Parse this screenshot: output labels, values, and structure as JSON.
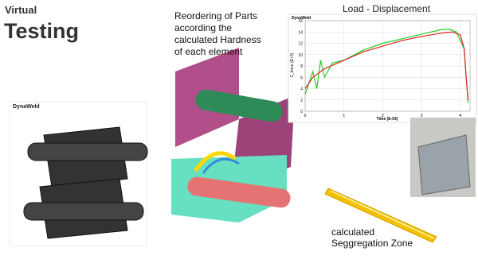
{
  "header": {
    "kicker": "Virtual",
    "title": "Testing"
  },
  "left_model_label": "DynaWeld",
  "reorder_note": [
    "Reordering of Parts",
    "according the",
    "calculated Hardness",
    "of each element"
  ],
  "zone_note": [
    "calculated",
    "Seggregation Zone"
  ],
  "chart_data": {
    "type": "line",
    "title": "Load - Displacement",
    "source": "DynaWeld",
    "x_label": "Time (E-03)",
    "y_label": "Z_force (E+3)",
    "xlim": [
      0,
      4.25
    ],
    "xticks": [
      0,
      1,
      2,
      3,
      4
    ],
    "ylim": [
      0,
      16
    ],
    "yticks": [
      0,
      2,
      4,
      6,
      8,
      10,
      12,
      14,
      16
    ],
    "series": [
      {
        "color": "#22cc22",
        "x": [
          0,
          0.1,
          0.2,
          0.3,
          0.4,
          0.5,
          0.7,
          1,
          1.5,
          2,
          2.5,
          3,
          3.5,
          3.7,
          3.9,
          4.1,
          4.15,
          4.2
        ],
        "values": [
          3,
          5,
          7,
          4,
          9,
          6,
          8.5,
          9,
          10.8,
          12,
          12.8,
          13.6,
          14.4,
          14.5,
          14,
          11,
          6,
          1.5
        ]
      },
      {
        "color": "#dd2222",
        "x": [
          0,
          0.2,
          0.5,
          1,
          1.5,
          2,
          2.5,
          3,
          3.5,
          3.8,
          4,
          4.1,
          4.15,
          4.2
        ],
        "values": [
          4,
          6,
          7.5,
          9,
          10.5,
          11.5,
          12.5,
          13.2,
          13.8,
          14,
          13.5,
          11,
          6,
          2
        ]
      }
    ]
  }
}
